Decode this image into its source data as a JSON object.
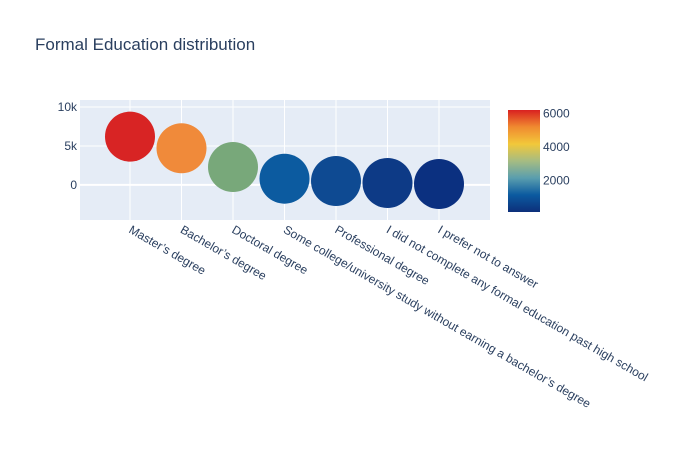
{
  "chart_data": {
    "type": "scatter",
    "title": "Formal Education distribution",
    "xlabel": "",
    "ylabel": "",
    "categories": [
      "Master’s degree",
      "Bachelor’s degree",
      "Doctoral degree",
      "Some college/university study without earning a bachelor’s degree",
      "Professional degree",
      "I did not complete any formal education past high school",
      "I prefer not to answer"
    ],
    "values": [
      6200,
      4700,
      2300,
      800,
      500,
      250,
      120
    ],
    "ylim": [
      -4500,
      10900
    ],
    "y_ticks": [
      0,
      5000,
      10000
    ],
    "y_tick_labels": [
      "0",
      "5k",
      "10k"
    ],
    "grid": true,
    "colorbar": {
      "ticks": [
        2000,
        4000,
        6000
      ],
      "tick_labels": [
        "2000",
        "4000",
        "6000"
      ],
      "range": [
        120,
        6200
      ],
      "colorscale": [
        "#0d2f7a",
        "#0b5aa0",
        "#5a9eae",
        "#a6bc82",
        "#f2c83a",
        "#f08a30",
        "#d92120"
      ]
    },
    "marker_colors": [
      "#d82424",
      "#f08a3a",
      "#78a87a",
      "#0c5ba0",
      "#0e4a92",
      "#0d3a86",
      "#0b3080"
    ]
  }
}
